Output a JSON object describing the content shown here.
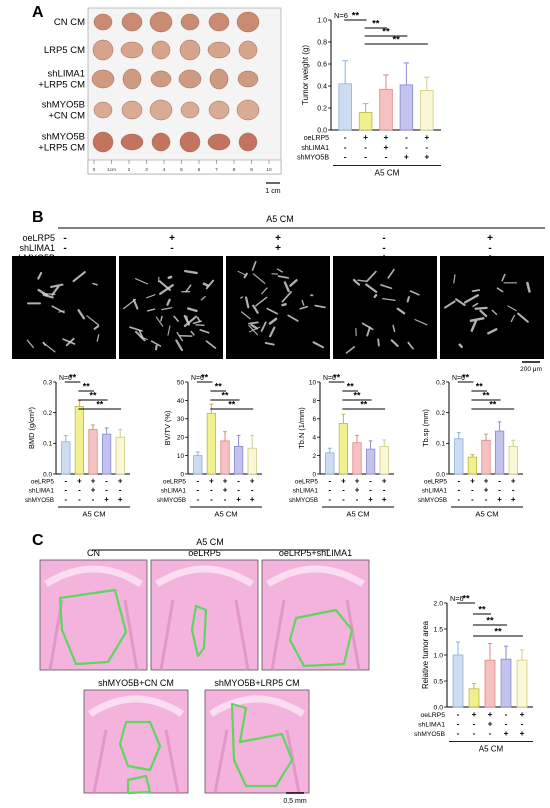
{
  "panels": {
    "A": {
      "letter": "A",
      "row_labels": [
        "CN CM",
        "LRP5 CM",
        "shLIMA1\n+LRP5 CM",
        "shMYO5B\n+CN CM",
        "shMYO5B\n+LRP5 CM"
      ],
      "ruler_ticks": [
        "0",
        "1cm",
        "2",
        "3",
        "4",
        "5",
        "6",
        "7",
        "8",
        "9",
        "10"
      ],
      "scale_label": "1 cm"
    },
    "B": {
      "letter": "B",
      "header": "A5 CM",
      "conditions": [
        {
          "label": "oeLRP5",
          "signs": [
            "-",
            "+",
            "+",
            "-",
            "+"
          ]
        },
        {
          "label": "shLIMA1",
          "signs": [
            "-",
            "-",
            "+",
            "-",
            "-"
          ]
        },
        {
          "label": "shMYO5B",
          "signs": [
            "-",
            "-",
            "-",
            "+",
            "+"
          ]
        }
      ],
      "scale_label": "200 μm"
    },
    "C": {
      "letter": "C",
      "header": "A5 CM",
      "top_labels": [
        "CN",
        "oeLRP5",
        "oeLRP5+shLIMA1"
      ],
      "bottom_labels": [
        "shMYO5B+CN CM",
        "shMYO5B+LRP5 CM"
      ],
      "scale_label": "0.5 mm"
    }
  },
  "colors": {
    "bars": [
      "#cddcf0",
      "#f1f08e",
      "#f5c2c2",
      "#c3c3ed",
      "#f9f7d4"
    ],
    "bars_stroke": [
      "#8ab0d8",
      "#bdb93e",
      "#e08585",
      "#8a8ad0",
      "#cfcc86"
    ],
    "outline": "#5fd55f"
  },
  "chart_data": [
    {
      "type": "bar",
      "id": "tumor-weight",
      "n_label": "N=6",
      "ylabel": "Tumor weight (g)",
      "ylim": [
        0,
        1.0
      ],
      "yticks": [
        "0.0",
        "0.2",
        "0.4",
        "0.6",
        "0.8",
        "1.0"
      ],
      "values": [
        0.42,
        0.16,
        0.37,
        0.41,
        0.36
      ],
      "errors": [
        0.21,
        0.08,
        0.13,
        0.2,
        0.12
      ],
      "conditions": [
        {
          "label": "oeLRP5",
          "signs": [
            "-",
            "+",
            "+",
            "-",
            "+"
          ]
        },
        {
          "label": "shLIMA1",
          "signs": [
            "-",
            "-",
            "+",
            "-",
            "-"
          ]
        },
        {
          "label": "shMYO5B",
          "signs": [
            "-",
            "-",
            "-",
            "+",
            "+"
          ]
        }
      ],
      "group_label": "A5 CM",
      "significance": [
        {
          "from": 0,
          "to": 1,
          "label": "**"
        },
        {
          "from": 1,
          "to": 2,
          "label": "**"
        },
        {
          "from": 1,
          "to": 3,
          "label": "**"
        },
        {
          "from": 1,
          "to": 4,
          "label": "**"
        }
      ]
    },
    {
      "type": "bar",
      "id": "bmd",
      "n_label": "N=6",
      "ylabel": "BMD (g/cm³)",
      "ylim": [
        0,
        0.3
      ],
      "yticks": [
        "0.0",
        "0.1",
        "0.2",
        "0.3"
      ],
      "values": [
        0.105,
        0.22,
        0.145,
        0.13,
        0.12
      ],
      "errors": [
        0.02,
        0.02,
        0.015,
        0.02,
        0.025
      ],
      "conditions": [
        {
          "label": "oeLRP5",
          "signs": [
            "-",
            "+",
            "+",
            "-",
            "+"
          ]
        },
        {
          "label": "shLIMA1",
          "signs": [
            "-",
            "-",
            "+",
            "-",
            "-"
          ]
        },
        {
          "label": "shMYO5B",
          "signs": [
            "-",
            "-",
            "-",
            "+",
            "+"
          ]
        }
      ],
      "group_label": "A5 CM",
      "significance": [
        {
          "from": 0,
          "to": 1,
          "label": "**"
        },
        {
          "from": 1,
          "to": 2,
          "label": "**"
        },
        {
          "from": 1,
          "to": 3,
          "label": "**"
        },
        {
          "from": 1,
          "to": 4,
          "label": "**"
        }
      ]
    },
    {
      "type": "bar",
      "id": "bv-tv",
      "n_label": "N=6",
      "ylabel": "BV/TV (%)",
      "ylim": [
        0,
        50
      ],
      "yticks": [
        "0",
        "10",
        "20",
        "30",
        "40",
        "50"
      ],
      "values": [
        10,
        33,
        18,
        15,
        14
      ],
      "errors": [
        2,
        5,
        5,
        6,
        7
      ],
      "conditions": [
        {
          "label": "oeLRP5",
          "signs": [
            "-",
            "+",
            "+",
            "-",
            "+"
          ]
        },
        {
          "label": "shLIMA1",
          "signs": [
            "-",
            "-",
            "+",
            "-",
            "-"
          ]
        },
        {
          "label": "shMYO5B",
          "signs": [
            "-",
            "-",
            "-",
            "+",
            "+"
          ]
        }
      ],
      "group_label": "A5 CM",
      "significance": [
        {
          "from": 0,
          "to": 1,
          "label": "**"
        },
        {
          "from": 1,
          "to": 2,
          "label": "**"
        },
        {
          "from": 1,
          "to": 3,
          "label": "**"
        },
        {
          "from": 1,
          "to": 4,
          "label": "**"
        }
      ]
    },
    {
      "type": "bar",
      "id": "tb-n",
      "n_label": "N=6",
      "ylabel": "Tb.N (1/mm)",
      "ylim": [
        0,
        10
      ],
      "yticks": [
        "0",
        "2",
        "4",
        "6",
        "8",
        "10"
      ],
      "values": [
        2.3,
        5.5,
        3.4,
        2.7,
        3.0
      ],
      "errors": [
        0.5,
        1.0,
        0.8,
        0.9,
        0.7
      ],
      "conditions": [
        {
          "label": "oeLRP5",
          "signs": [
            "-",
            "+",
            "+",
            "-",
            "+"
          ]
        },
        {
          "label": "shLIMA1",
          "signs": [
            "-",
            "-",
            "+",
            "-",
            "-"
          ]
        },
        {
          "label": "shMYO5B",
          "signs": [
            "-",
            "-",
            "-",
            "+",
            "+"
          ]
        }
      ],
      "group_label": "A5 CM",
      "significance": [
        {
          "from": 0,
          "to": 1,
          "label": "**"
        },
        {
          "from": 1,
          "to": 2,
          "label": "**"
        },
        {
          "from": 1,
          "to": 3,
          "label": "**"
        },
        {
          "from": 1,
          "to": 4,
          "label": "**"
        }
      ]
    },
    {
      "type": "bar",
      "id": "tb-sp",
      "n_label": "N=6",
      "ylabel": "Tb.sp (mm)",
      "ylim": [
        0,
        0.3
      ],
      "yticks": [
        "0.0",
        "0.1",
        "0.2",
        "0.3"
      ],
      "values": [
        0.115,
        0.055,
        0.11,
        0.14,
        0.09
      ],
      "errors": [
        0.02,
        0.008,
        0.02,
        0.03,
        0.02
      ],
      "conditions": [
        {
          "label": "oeLRP5",
          "signs": [
            "-",
            "+",
            "+",
            "-",
            "+"
          ]
        },
        {
          "label": "shLIMA1",
          "signs": [
            "-",
            "-",
            "+",
            "-",
            "-"
          ]
        },
        {
          "label": "shMYO5B",
          "signs": [
            "-",
            "-",
            "-",
            "+",
            "+"
          ]
        }
      ],
      "group_label": "A5 CM",
      "significance": [
        {
          "from": 0,
          "to": 1,
          "label": "**"
        },
        {
          "from": 1,
          "to": 2,
          "label": "**"
        },
        {
          "from": 1,
          "to": 3,
          "label": "**"
        },
        {
          "from": 1,
          "to": 4,
          "label": "**"
        }
      ]
    },
    {
      "type": "bar",
      "id": "tumor-area",
      "n_label": "N=6",
      "ylabel": "Relative tumor area",
      "ylim": [
        0,
        2.0
      ],
      "yticks": [
        "0.0",
        "0.5",
        "1.0",
        "1.5",
        "2.0"
      ],
      "values": [
        1.0,
        0.35,
        0.9,
        0.92,
        0.9
      ],
      "errors": [
        0.25,
        0.1,
        0.32,
        0.25,
        0.2
      ],
      "conditions": [
        {
          "label": "oeLRP5",
          "signs": [
            "-",
            "+",
            "+",
            "-",
            "+"
          ]
        },
        {
          "label": "shLIMA1",
          "signs": [
            "-",
            "-",
            "+",
            "-",
            "-"
          ]
        },
        {
          "label": "shMYO5B",
          "signs": [
            "-",
            "-",
            "-",
            "+",
            "+"
          ]
        }
      ],
      "group_label": "A5 CM",
      "significance": [
        {
          "from": 0,
          "to": 1,
          "label": "**"
        },
        {
          "from": 1,
          "to": 2,
          "label": "**"
        },
        {
          "from": 1,
          "to": 3,
          "label": "**"
        },
        {
          "from": 1,
          "to": 4,
          "label": "**"
        }
      ]
    }
  ]
}
